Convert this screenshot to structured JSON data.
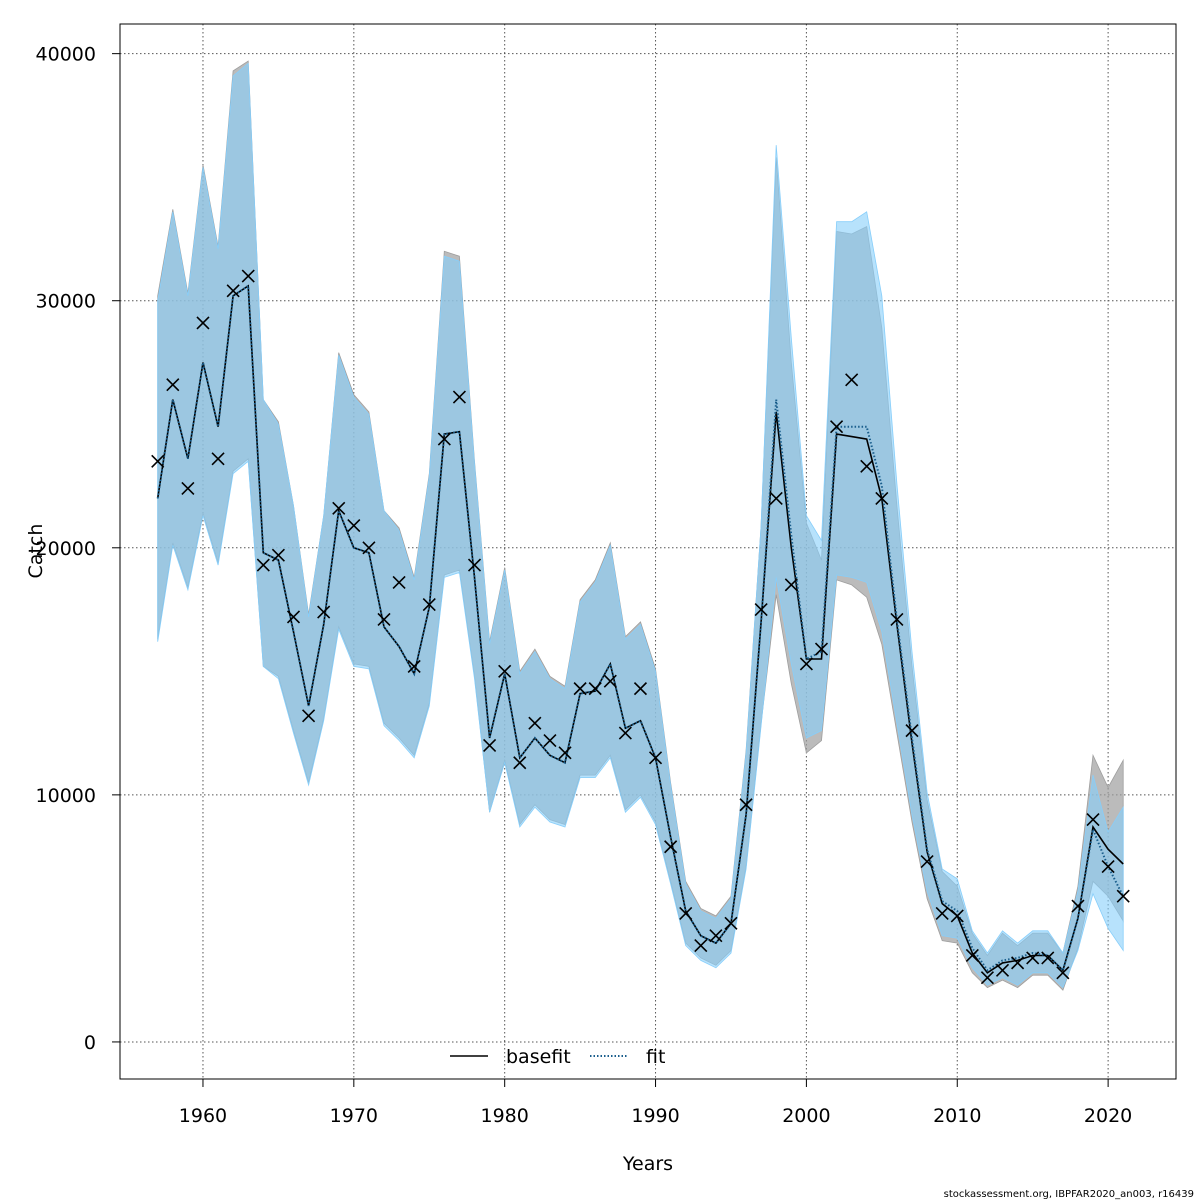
{
  "chart_data": {
    "type": "line",
    "title": "",
    "xlabel": "Years",
    "ylabel": "Catch",
    "xlim": [
      1954.5,
      2024.5
    ],
    "ylim": [
      -1500,
      41200
    ],
    "x_ticks": [
      1960,
      1970,
      1980,
      1990,
      2000,
      2010,
      2020
    ],
    "y_ticks": [
      0,
      10000,
      20000,
      30000,
      40000
    ],
    "grid": true,
    "legend_position": "bottom-center",
    "x": [
      1957,
      1958,
      1959,
      1960,
      1961,
      1962,
      1963,
      1964,
      1965,
      1966,
      1967,
      1968,
      1969,
      1970,
      1971,
      1972,
      1973,
      1974,
      1975,
      1976,
      1977,
      1978,
      1979,
      1980,
      1981,
      1982,
      1983,
      1984,
      1985,
      1986,
      1987,
      1988,
      1989,
      1990,
      1991,
      1992,
      1993,
      1994,
      1995,
      1996,
      1997,
      1998,
      1999,
      2000,
      2001,
      2002,
      2003,
      2004,
      2005,
      2006,
      2007,
      2008,
      2009,
      2010,
      2011,
      2012,
      2013,
      2014,
      2015,
      2016,
      2017,
      2018,
      2019,
      2020,
      2021
    ],
    "series": [
      {
        "name": "basefit",
        "color": "#000000",
        "style": "solid",
        "values": [
          22000,
          26000,
          23600,
          27500,
          24900,
          30200,
          30600,
          19800,
          19500,
          16600,
          13600,
          16900,
          21500,
          20000,
          19800,
          16800,
          16000,
          14900,
          17600,
          24600,
          24700,
          18800,
          12300,
          14900,
          11500,
          12300,
          11600,
          11300,
          14100,
          14200,
          15300,
          12700,
          13000,
          11500,
          8300,
          5300,
          4300,
          4000,
          4800,
          9200,
          17000,
          25500,
          20000,
          15500,
          15500,
          24600,
          24500,
          24400,
          22000,
          16900,
          12100,
          7700,
          5600,
          5100,
          3600,
          2800,
          3200,
          3300,
          3500,
          3500,
          2900,
          5000,
          8700,
          7800,
          7200
        ],
        "upper": [
          30200,
          33700,
          30300,
          35500,
          32200,
          39300,
          39700,
          26000,
          25100,
          21700,
          17300,
          21300,
          27900,
          26200,
          25500,
          21500,
          20800,
          18800,
          23000,
          32000,
          31800,
          23500,
          16200,
          19200,
          15000,
          15900,
          14800,
          14400,
          17900,
          18700,
          20200,
          16400,
          17000,
          15100,
          10500,
          6500,
          5400,
          5100,
          5900,
          11800,
          20900,
          35800,
          27500,
          21000,
          19500,
          32800,
          32700,
          33000,
          28900,
          21700,
          15200,
          9800,
          6900,
          6300,
          4400,
          3500,
          4400,
          3900,
          4400,
          4400,
          3600,
          6300,
          11600,
          10300,
          11400
        ],
        "lower": [
          16300,
          20200,
          18400,
          21400,
          19400,
          23100,
          23600,
          15200,
          14800,
          12600,
          10500,
          13100,
          16800,
          15300,
          15200,
          12900,
          12300,
          11600,
          13700,
          18900,
          19100,
          14800,
          9300,
          11400,
          8800,
          9600,
          9000,
          8800,
          10800,
          10800,
          11600,
          9400,
          10000,
          8900,
          6500,
          4000,
          3400,
          3100,
          3700,
          7100,
          12900,
          18100,
          14500,
          11700,
          12200,
          18700,
          18500,
          18000,
          16100,
          12500,
          8900,
          5800,
          4100,
          4000,
          2800,
          2200,
          2500,
          2200,
          2700,
          2700,
          2100,
          3800,
          6500,
          5900,
          4900
        ]
      },
      {
        "name": "fit",
        "color": "#1a5e8c",
        "style": "dotted",
        "values": [
          22000,
          26000,
          23600,
          27500,
          24900,
          30200,
          30600,
          19800,
          19500,
          16600,
          13600,
          16900,
          21500,
          20000,
          19800,
          16800,
          16000,
          14900,
          17600,
          24600,
          24700,
          18800,
          12300,
          14900,
          11500,
          12300,
          11600,
          11300,
          14100,
          14200,
          15300,
          12700,
          13000,
          11500,
          8300,
          5300,
          4300,
          4000,
          4800,
          9200,
          17000,
          26000,
          20500,
          15500,
          15800,
          24900,
          24900,
          24900,
          22500,
          17100,
          12300,
          7800,
          5700,
          5300,
          3800,
          2900,
          3300,
          3400,
          3600,
          3500,
          2900,
          5000,
          8600,
          7100,
          5900
        ],
        "upper": [
          30000,
          33600,
          30200,
          35400,
          32100,
          39100,
          39600,
          26000,
          25000,
          21700,
          17200,
          21300,
          27800,
          26100,
          25400,
          21500,
          20700,
          18700,
          22900,
          31800,
          31600,
          23400,
          16100,
          19100,
          14900,
          15800,
          14700,
          14300,
          17800,
          18600,
          20100,
          16300,
          16900,
          15000,
          10400,
          6400,
          5300,
          5000,
          5800,
          11700,
          20900,
          36300,
          28500,
          21300,
          20300,
          33200,
          33200,
          33600,
          30200,
          22600,
          15800,
          10100,
          7000,
          6600,
          4500,
          3600,
          4500,
          4000,
          4500,
          4500,
          3600,
          6100,
          10800,
          8500,
          9500
        ],
        "lower": [
          16200,
          20100,
          18300,
          21300,
          19300,
          23000,
          23500,
          15200,
          14700,
          12500,
          10400,
          13000,
          16700,
          15200,
          15100,
          12800,
          12200,
          11500,
          13600,
          18800,
          19000,
          14700,
          9300,
          11300,
          8700,
          9500,
          8900,
          8700,
          10700,
          10700,
          11500,
          9300,
          9900,
          8800,
          6400,
          3900,
          3300,
          3000,
          3600,
          7000,
          12800,
          18800,
          15300,
          12300,
          12600,
          18900,
          18800,
          18600,
          16600,
          12900,
          9200,
          6100,
          4300,
          4200,
          3000,
          2300,
          2600,
          2300,
          2800,
          2800,
          2200,
          3700,
          6000,
          4600,
          3700
        ]
      }
    ],
    "observations": [
      23500,
      26600,
      22400,
      29100,
      23600,
      30400,
      31000,
      19300,
      19700,
      17200,
      13200,
      17400,
      21600,
      20900,
      20000,
      17100,
      18600,
      15200,
      17700,
      24400,
      26100,
      19300,
      12000,
      15000,
      11300,
      12900,
      12200,
      11700,
      14300,
      14300,
      14600,
      12500,
      14300,
      11500,
      7900,
      5200,
      3900,
      4300,
      4800,
      9600,
      17500,
      22000,
      18500,
      15300,
      15900,
      24900,
      26800,
      23300,
      22000,
      17100,
      12600,
      7300,
      5200,
      5100,
      3500,
      2600,
      2900,
      3200,
      3400,
      3400,
      2800,
      5500,
      9000,
      7100,
      5900
    ],
    "colors": {
      "basefit_band": "#9e9e9e",
      "fit_band": "#87cefa",
      "observation_marker": "#000000",
      "grid": "#555555"
    }
  },
  "footer": {
    "text": "stockassessment.org, IBPFAR2020_an003, r16439"
  }
}
